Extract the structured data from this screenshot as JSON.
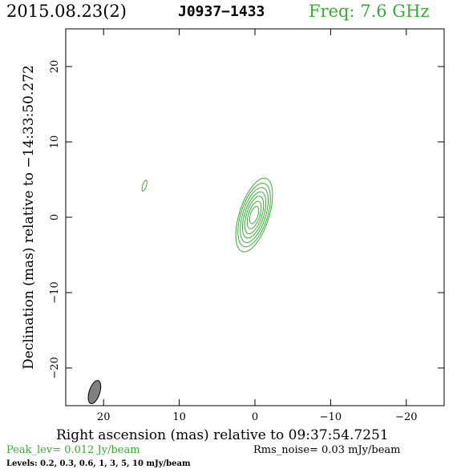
{
  "header": {
    "date": "2015.08.23(2)",
    "source": "J0937−1433",
    "frequency": "Freq: 7.6 GHz"
  },
  "footer": {
    "peak": "Peak_lev=  0.012 Jy/beam",
    "rms": "Rms_noise= 0.03 mJy/beam",
    "levels": "Levels: 0.2, 0.3, 0.6,    1,    3,    5,   10 mJy/beam"
  },
  "colors": {
    "contour": "#3aaa35",
    "beam_fill": "#808080",
    "axis": "#000000"
  },
  "chart_data": {
    "type": "contour",
    "xlabel": "Right ascension (mas) relative to 09:37:54.7251",
    "ylabel": "Declination (mas) relative to −14:33:50.272",
    "xlim": [
      25,
      -25
    ],
    "ylim": [
      -25,
      25
    ],
    "xticks": [
      20,
      10,
      0,
      -10,
      -20
    ],
    "xtick_labels": [
      "20",
      "10",
      "0",
      "−10",
      "−20"
    ],
    "yticks": [
      20,
      10,
      0,
      -10,
      -20
    ],
    "ytick_labels": [
      "20",
      "10",
      "0",
      "−10",
      "−20"
    ],
    "contour_levels_mJy": [
      0.2,
      0.3,
      0.6,
      1,
      3,
      5,
      10
    ],
    "peak_Jy_per_beam": 0.012,
    "rms_noise_mJy_per_beam": 0.03,
    "core": {
      "x": 0.1,
      "y": 0.3,
      "pa_deg": 18,
      "contours": [
        {
          "a": 1.2,
          "b": 0.5
        },
        {
          "a": 1.9,
          "b": 0.75
        },
        {
          "a": 2.6,
          "b": 1.0
        },
        {
          "a": 3.2,
          "b": 1.25
        },
        {
          "a": 3.8,
          "b": 1.5
        },
        {
          "a": 4.4,
          "b": 1.75
        },
        {
          "a": 5.1,
          "b": 1.95
        }
      ]
    },
    "secondary_components": [
      {
        "x": 14.6,
        "y": 4.2,
        "a": 0.75,
        "b": 0.25,
        "pa_deg": 18
      }
    ],
    "beam": {
      "x": 21.2,
      "y": -23.2,
      "a": 1.6,
      "b": 0.7,
      "pa_deg": 18
    }
  }
}
